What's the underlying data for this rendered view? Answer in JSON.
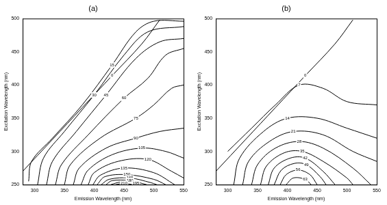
{
  "chart_data": [
    {
      "type": "contour",
      "title": "(a)",
      "x_label": "Emission Wavelength (nm)",
      "y_label": "Excitation Wavelength (nm)",
      "xlim": [
        280,
        550
      ],
      "ylim": [
        250,
        500
      ],
      "xticks": [
        300,
        350,
        400,
        450,
        500,
        550
      ],
      "yticks": [
        250,
        300,
        350,
        400,
        450,
        500
      ],
      "grid": false,
      "color": "#000000",
      "contours": [
        {
          "level": 0,
          "x": [
            280,
            330,
            380,
            430,
            480,
            510
          ],
          "y": [
            270,
            318,
            366,
            414,
            462,
            498
          ]
        },
        {
          "level": 15,
          "x": [
            290,
            295,
            330,
            380,
            430,
            470,
            500,
            550
          ],
          "y": [
            255,
            285,
            320,
            370,
            430,
            480,
            496,
            496
          ]
        },
        {
          "level": 30,
          "x": [
            305,
            315,
            350,
            400,
            450,
            490,
            550
          ],
          "y": [
            250,
            290,
            330,
            385,
            445,
            480,
            488
          ]
        },
        {
          "level": 45,
          "x": [
            320,
            330,
            370,
            420,
            470,
            510,
            550
          ],
          "y": [
            250,
            285,
            330,
            385,
            440,
            465,
            470
          ]
        },
        {
          "level": 60,
          "x": [
            335,
            345,
            390,
            450,
            490,
            520,
            550
          ],
          "y": [
            250,
            280,
            325,
            380,
            410,
            445,
            455
          ]
        },
        {
          "level": 75,
          "x": [
            350,
            360,
            410,
            470,
            500,
            530,
            550
          ],
          "y": [
            250,
            280,
            320,
            350,
            370,
            395,
            400
          ]
        },
        {
          "level": 90,
          "x": [
            365,
            375,
            420,
            470,
            510,
            550
          ],
          "y": [
            250,
            275,
            305,
            320,
            330,
            335
          ]
        },
        {
          "level": 105,
          "x": [
            378,
            390,
            430,
            480,
            520,
            550
          ],
          "y": [
            250,
            272,
            295,
            305,
            300,
            290
          ]
        },
        {
          "level": 120,
          "x": [
            390,
            400,
            440,
            490,
            530,
            550
          ],
          "y": [
            250,
            268,
            285,
            288,
            270,
            260
          ]
        },
        {
          "level": 135,
          "x": [
            398,
            410,
            450,
            500,
            535
          ],
          "y": [
            250,
            264,
            275,
            268,
            250
          ]
        },
        {
          "level": 150,
          "x": [
            405,
            418,
            455,
            500,
            520
          ],
          "y": [
            250,
            262,
            265,
            258,
            250
          ]
        },
        {
          "level": 165,
          "x": [
            412,
            425,
            460,
            495,
            505
          ],
          "y": [
            250,
            258,
            260,
            253,
            250
          ]
        },
        {
          "level": 180,
          "x": [
            420,
            430,
            460,
            488
          ],
          "y": [
            250,
            256,
            256,
            250
          ]
        },
        {
          "level": 195,
          "x": [
            428,
            445,
            470,
            478
          ],
          "y": [
            250,
            254,
            252,
            250
          ]
        },
        {
          "level": 210,
          "x": [
            436,
            450,
            465
          ],
          "y": [
            250,
            252,
            250
          ]
        }
      ]
    },
    {
      "type": "contour",
      "title": "(b)",
      "x_label": "Emission Wavelength (nm)",
      "y_label": "Excitation Wavelength (nm)",
      "xlim": [
        280,
        550
      ],
      "ylim": [
        250,
        500
      ],
      "xticks": [
        300,
        350,
        400,
        450,
        500,
        550
      ],
      "yticks": [
        250,
        300,
        350,
        400,
        450,
        500
      ],
      "grid": false,
      "color": "#000000",
      "contours": [
        {
          "level": 0,
          "x": [
            280,
            330,
            380,
            430,
            480,
            510
          ],
          "y": [
            270,
            318,
            366,
            414,
            462,
            498
          ]
        },
        {
          "level": 7,
          "x": [
            300,
            340,
            380,
            420,
            460,
            500,
            550
          ],
          "y": [
            300,
            335,
            370,
            400,
            395,
            375,
            370
          ]
        },
        {
          "level": 14,
          "x": [
            310,
            320,
            360,
            400,
            450,
            500,
            550
          ],
          "y": [
            250,
            290,
            330,
            350,
            350,
            335,
            320
          ]
        },
        {
          "level": 21,
          "x": [
            325,
            335,
            370,
            410,
            460,
            510,
            550
          ],
          "y": [
            250,
            285,
            315,
            330,
            325,
            300,
            285
          ]
        },
        {
          "level": 28,
          "x": [
            340,
            350,
            380,
            420,
            460,
            510,
            540
          ],
          "y": [
            250,
            280,
            305,
            315,
            305,
            275,
            250
          ]
        },
        {
          "level": 35,
          "x": [
            355,
            365,
            395,
            425,
            460,
            500,
            510
          ],
          "y": [
            250,
            278,
            298,
            300,
            285,
            260,
            250
          ]
        },
        {
          "level": 42,
          "x": [
            368,
            378,
            405,
            430,
            460,
            480
          ],
          "y": [
            250,
            275,
            290,
            290,
            270,
            250
          ]
        },
        {
          "level": 49,
          "x": [
            378,
            390,
            412,
            432,
            455,
            465
          ],
          "y": [
            250,
            272,
            282,
            280,
            262,
            250
          ]
        },
        {
          "level": 56,
          "x": [
            388,
            398,
            418,
            438,
            450
          ],
          "y": [
            250,
            265,
            272,
            265,
            250
          ]
        },
        {
          "level": 63,
          "x": [
            398,
            410,
            430,
            440
          ],
          "y": [
            250,
            260,
            258,
            250
          ]
        }
      ]
    }
  ]
}
